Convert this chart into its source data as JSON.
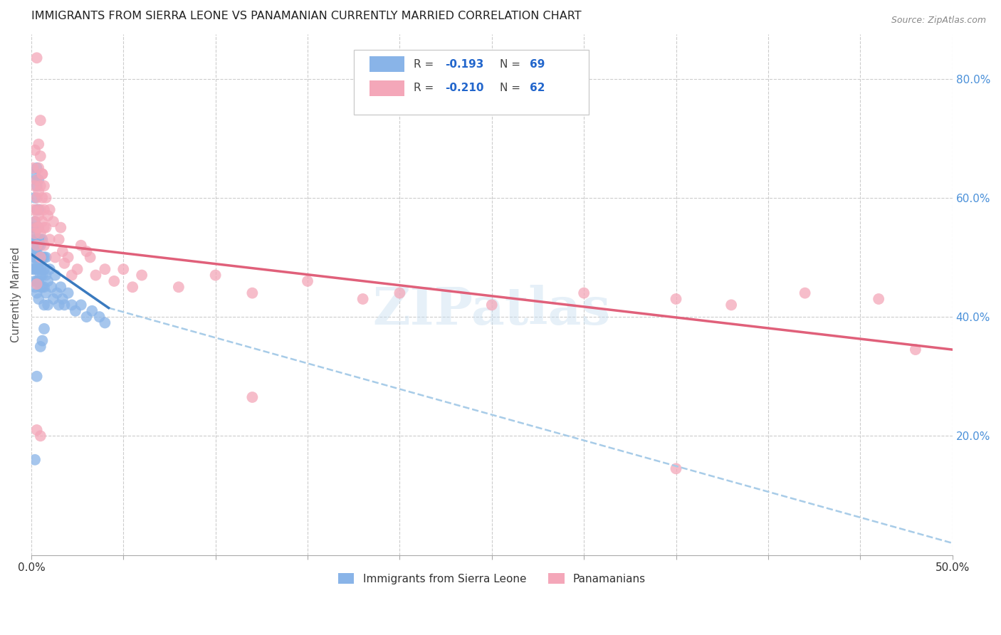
{
  "title": "IMMIGRANTS FROM SIERRA LEONE VS PANAMANIAN CURRENTLY MARRIED CORRELATION CHART",
  "source_text": "Source: ZipAtlas.com",
  "ylabel": "Currently Married",
  "legend_labels": [
    "Immigrants from Sierra Leone",
    "Panamanians"
  ],
  "xlim": [
    0.0,
    0.5
  ],
  "ylim": [
    0.0,
    0.875
  ],
  "x_ticks": [
    0.0,
    0.05,
    0.1,
    0.15,
    0.2,
    0.25,
    0.3,
    0.35,
    0.4,
    0.45,
    0.5
  ],
  "y_ticks_right": [
    0.2,
    0.4,
    0.6,
    0.8
  ],
  "y_tick_labels_right": [
    "20.0%",
    "40.0%",
    "60.0%",
    "80.0%"
  ],
  "color_blue": "#89b4e8",
  "color_pink": "#f4a7b9",
  "color_trendline_blue": "#3a7abf",
  "color_trendline_pink": "#e0607a",
  "color_trendline_dashed": "#a8cce8",
  "watermark": "ZIPatlas",
  "background_color": "#ffffff",
  "grid_color": "#cccccc",
  "blue_trend_x0": 0.0,
  "blue_trend_y0": 0.505,
  "blue_trend_x1": 0.042,
  "blue_trend_y1": 0.415,
  "pink_trend_x0": 0.0,
  "pink_trend_y0": 0.525,
  "pink_trend_x1": 0.5,
  "pink_trend_y1": 0.345,
  "dash_trend_x0": 0.042,
  "dash_trend_y0": 0.415,
  "dash_trend_x1": 0.5,
  "dash_trend_y1": 0.02,
  "sierra_leone_x": [
    0.001,
    0.001,
    0.001,
    0.002,
    0.002,
    0.002,
    0.002,
    0.002,
    0.002,
    0.002,
    0.002,
    0.002,
    0.003,
    0.003,
    0.003,
    0.003,
    0.003,
    0.003,
    0.003,
    0.003,
    0.003,
    0.003,
    0.004,
    0.004,
    0.004,
    0.004,
    0.004,
    0.004,
    0.004,
    0.004,
    0.005,
    0.005,
    0.005,
    0.005,
    0.005,
    0.005,
    0.006,
    0.006,
    0.006,
    0.006,
    0.007,
    0.007,
    0.007,
    0.007,
    0.008,
    0.008,
    0.008,
    0.009,
    0.009,
    0.01,
    0.011,
    0.012,
    0.013,
    0.014,
    0.015,
    0.016,
    0.017,
    0.018,
    0.02,
    0.022,
    0.024,
    0.027,
    0.03,
    0.033,
    0.037,
    0.04,
    0.002,
    0.003,
    0.004
  ],
  "sierra_leone_y": [
    0.52,
    0.48,
    0.55,
    0.5,
    0.53,
    0.56,
    0.48,
    0.51,
    0.46,
    0.54,
    0.5,
    0.45,
    0.52,
    0.55,
    0.48,
    0.5,
    0.53,
    0.46,
    0.51,
    0.49,
    0.58,
    0.44,
    0.52,
    0.48,
    0.5,
    0.53,
    0.46,
    0.49,
    0.55,
    0.43,
    0.5,
    0.47,
    0.52,
    0.48,
    0.45,
    0.53,
    0.5,
    0.47,
    0.53,
    0.45,
    0.48,
    0.5,
    0.45,
    0.42,
    0.47,
    0.5,
    0.44,
    0.46,
    0.42,
    0.48,
    0.45,
    0.43,
    0.47,
    0.44,
    0.42,
    0.45,
    0.43,
    0.42,
    0.44,
    0.42,
    0.41,
    0.42,
    0.4,
    0.41,
    0.4,
    0.39,
    0.6,
    0.63,
    0.58
  ],
  "panamanian_x": [
    0.001,
    0.001,
    0.002,
    0.002,
    0.002,
    0.002,
    0.003,
    0.003,
    0.003,
    0.003,
    0.003,
    0.004,
    0.004,
    0.004,
    0.004,
    0.005,
    0.005,
    0.005,
    0.005,
    0.006,
    0.006,
    0.006,
    0.007,
    0.007,
    0.007,
    0.008,
    0.008,
    0.009,
    0.01,
    0.01,
    0.012,
    0.013,
    0.015,
    0.016,
    0.017,
    0.018,
    0.02,
    0.022,
    0.025,
    0.027,
    0.03,
    0.032,
    0.035,
    0.04,
    0.045,
    0.05,
    0.055,
    0.06,
    0.08,
    0.1,
    0.12,
    0.15,
    0.18,
    0.2,
    0.25,
    0.3,
    0.35,
    0.38,
    0.42,
    0.46,
    0.003,
    0.48
  ],
  "panamanian_y": [
    0.58,
    0.65,
    0.62,
    0.56,
    0.68,
    0.54,
    0.6,
    0.55,
    0.63,
    0.58,
    0.52,
    0.57,
    0.61,
    0.55,
    0.65,
    0.58,
    0.54,
    0.62,
    0.5,
    0.56,
    0.6,
    0.64,
    0.55,
    0.58,
    0.52,
    0.6,
    0.55,
    0.57,
    0.53,
    0.58,
    0.56,
    0.5,
    0.53,
    0.55,
    0.51,
    0.49,
    0.5,
    0.47,
    0.48,
    0.52,
    0.51,
    0.5,
    0.47,
    0.48,
    0.46,
    0.48,
    0.45,
    0.47,
    0.45,
    0.47,
    0.44,
    0.46,
    0.43,
    0.44,
    0.42,
    0.44,
    0.43,
    0.42,
    0.44,
    0.43,
    0.455,
    0.345
  ],
  "special_blue_x": [
    0.002,
    0.003,
    0.005,
    0.006,
    0.007,
    0.003,
    0.004,
    0.002,
    0.003
  ],
  "special_blue_y": [
    0.16,
    0.3,
    0.35,
    0.36,
    0.38,
    0.62,
    0.63,
    0.64,
    0.65
  ],
  "special_pink_x": [
    0.003,
    0.005,
    0.004,
    0.005,
    0.006,
    0.007,
    0.003,
    0.005,
    0.12,
    0.35
  ],
  "special_pink_y": [
    0.835,
    0.73,
    0.69,
    0.67,
    0.64,
    0.62,
    0.21,
    0.2,
    0.265,
    0.145
  ]
}
